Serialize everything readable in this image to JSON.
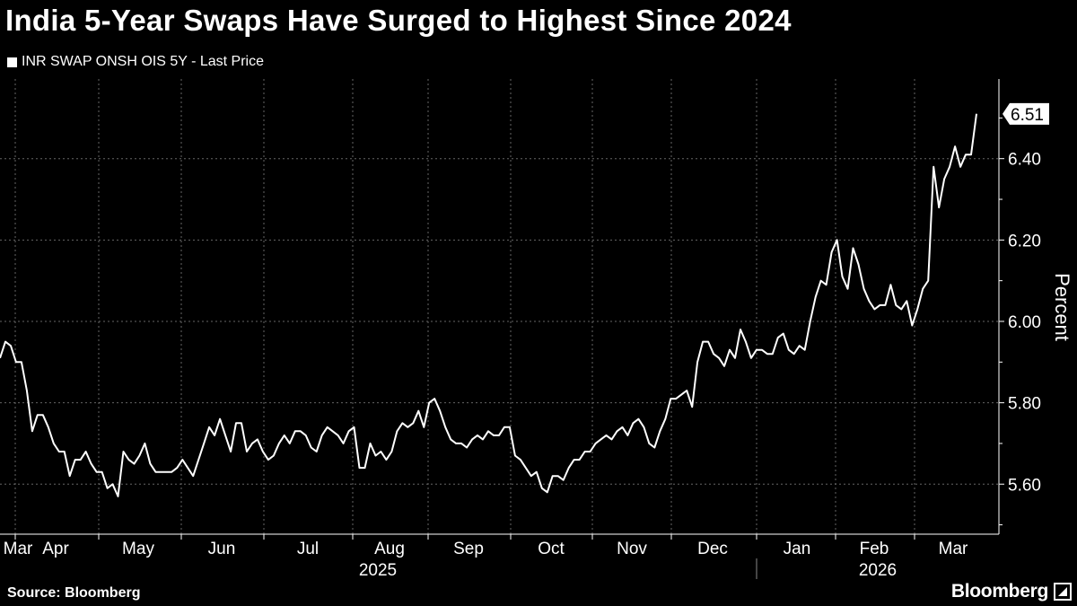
{
  "title": "India 5-Year Swaps Have Surged to Highest Since 2024",
  "footer": {
    "source": "Source: Bloomberg",
    "logo": "Bloomberg"
  },
  "chart_data": {
    "type": "line",
    "title": "India 5-Year Swaps Have Surged to Highest Since 2024",
    "legend": "top-left",
    "series": [
      {
        "name": "INR SWAP ONSH OIS 5Y - Last Price",
        "color": "#ffffff",
        "values": [
          5.91,
          5.95,
          5.94,
          5.9,
          5.9,
          5.83,
          5.73,
          5.77,
          5.77,
          5.74,
          5.7,
          5.68,
          5.68,
          5.62,
          5.66,
          5.66,
          5.68,
          5.65,
          5.63,
          5.63,
          5.59,
          5.6,
          5.57,
          5.68,
          5.66,
          5.65,
          5.67,
          5.7,
          5.65,
          5.63,
          5.63,
          5.63,
          5.63,
          5.64,
          5.66,
          5.64,
          5.62,
          5.66,
          5.7,
          5.74,
          5.72,
          5.76,
          5.72,
          5.68,
          5.75,
          5.75,
          5.68,
          5.7,
          5.71,
          5.68,
          5.66,
          5.67,
          5.7,
          5.72,
          5.7,
          5.73,
          5.73,
          5.72,
          5.69,
          5.68,
          5.72,
          5.74,
          5.73,
          5.72,
          5.7,
          5.73,
          5.74,
          5.64,
          5.64,
          5.7,
          5.67,
          5.68,
          5.66,
          5.68,
          5.73,
          5.75,
          5.74,
          5.75,
          5.78,
          5.74,
          5.8,
          5.81,
          5.78,
          5.74,
          5.71,
          5.7,
          5.7,
          5.69,
          5.71,
          5.72,
          5.71,
          5.73,
          5.72,
          5.72,
          5.74,
          5.74,
          5.67,
          5.66,
          5.64,
          5.62,
          5.63,
          5.59,
          5.58,
          5.62,
          5.62,
          5.61,
          5.64,
          5.66,
          5.66,
          5.68,
          5.68,
          5.7,
          5.71,
          5.72,
          5.71,
          5.73,
          5.74,
          5.72,
          5.75,
          5.76,
          5.74,
          5.7,
          5.69,
          5.73,
          5.76,
          5.81,
          5.81,
          5.82,
          5.83,
          5.79,
          5.9,
          5.95,
          5.95,
          5.92,
          5.91,
          5.89,
          5.93,
          5.91,
          5.98,
          5.95,
          5.91,
          5.93,
          5.93,
          5.92,
          5.92,
          5.96,
          5.97,
          5.93,
          5.92,
          5.94,
          5.93,
          6.0,
          6.06,
          6.1,
          6.09,
          6.17,
          6.2,
          6.11,
          6.08,
          6.18,
          6.14,
          6.08,
          6.05,
          6.03,
          6.04,
          6.04,
          6.09,
          6.04,
          6.03,
          6.05,
          5.99,
          6.03,
          6.08,
          6.1,
          6.38,
          6.28,
          6.35,
          6.38,
          6.43,
          6.38,
          6.41,
          6.41,
          6.51
        ]
      }
    ],
    "last_value_label": "6.51",
    "ylabel": "Percent",
    "ylim": [
      5.48,
      6.62
    ],
    "yticks": [
      "5.60",
      "5.80",
      "6.00",
      "6.20",
      "6.40"
    ],
    "xtick_labels": [
      "Mar",
      "Apr",
      "May",
      "Jun",
      "Jul",
      "Aug",
      "Sep",
      "Oct",
      "Nov",
      "Dec",
      "Jan",
      "Feb",
      "Mar"
    ],
    "year_labels": [
      "2025",
      "2026"
    ],
    "grid": true
  }
}
